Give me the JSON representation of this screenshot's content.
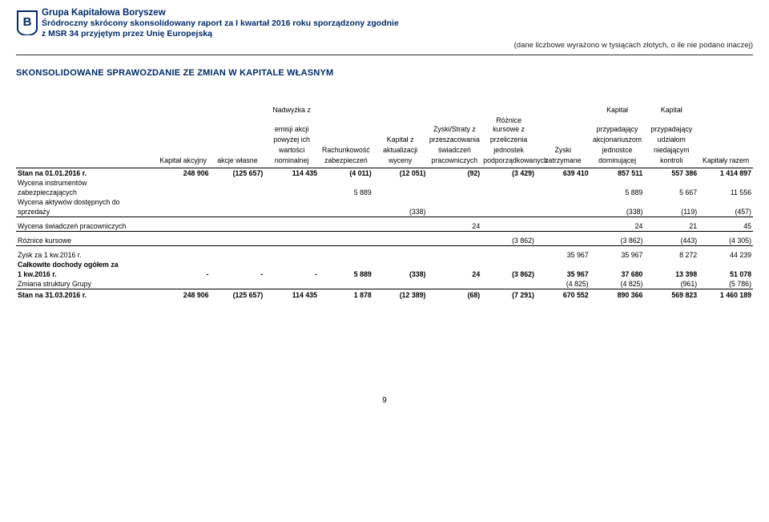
{
  "header": {
    "company": "Grupa Kapitałowa Boryszew",
    "sub1": "Śródroczny skrócony skonsolidowany raport za I kwartał 2016 roku sporządzony zgodnie",
    "sub2": "z MSR 34 przyjętym przez Unię Europejską",
    "note": "(dane liczbowe wyrażono w tysiącach złotych, o ile nie podano inaczej)"
  },
  "section_title": "SKONSOLIDOWANE SPRAWOZDANIE ZE ZMIAN W KAPITALE WŁASNYM",
  "columns": {
    "c1": [
      "",
      "",
      "",
      "Kapitał akcyjny"
    ],
    "c2": [
      "",
      "",
      "",
      "akcje własne"
    ],
    "c3": [
      "Nadwyżka z",
      "emisji akcji",
      "powyżej ich",
      "wartości",
      "nominalnej"
    ],
    "c4": [
      "",
      "",
      "",
      "Rachunkowość",
      "zabezpieczeń"
    ],
    "c5": [
      "",
      "",
      "Kapitał z",
      "aktualizacji",
      "wyceny"
    ],
    "c6": [
      "",
      "Zyski/Straty z",
      "przeszacowania",
      "świadczeń",
      "pracowniczych"
    ],
    "c7": [
      "",
      "Różnice kursowe z",
      "przeliczenia",
      "jednostek",
      "podporządkowanych"
    ],
    "c8": [
      "",
      "",
      "",
      "Zyski",
      "zatrzymane"
    ],
    "c9": [
      "Kapitał",
      "przypadający",
      "akcjonariuszom",
      "jednostce",
      "dominującej"
    ],
    "c10": [
      "Kapitał",
      "przypadający",
      "udziałom",
      "niedającym",
      "kontroli"
    ],
    "c11": [
      "",
      "",
      "",
      "",
      "Kapitały razem"
    ]
  },
  "rows": [
    {
      "label": "Stan na 01.01.2016 r.",
      "class": "data-first",
      "v": [
        "248 906",
        "(125 657)",
        "114 435",
        "(4 011)",
        "(12 051)",
        "(92)",
        "(3 429)",
        "639 410",
        "857 511",
        "557 386",
        "1 414 897"
      ]
    },
    {
      "label": "Wycena instrumentów",
      "class": "",
      "v": [
        "",
        "",
        "",
        "",
        "",
        "",
        "",
        "",
        "",
        "",
        ""
      ]
    },
    {
      "label": "zabezpieczających",
      "class": "",
      "v": [
        "",
        "",
        "",
        "5 889",
        "",
        "",
        "",
        "",
        "5 889",
        "5 667",
        "11 556"
      ]
    },
    {
      "label": "Wycena aktywów dostępnych do",
      "class": "",
      "v": [
        "",
        "",
        "",
        "",
        "",
        "",
        "",
        "",
        "",
        "",
        ""
      ]
    },
    {
      "label": "sprzedaży",
      "class": "",
      "v": [
        "",
        "",
        "",
        "",
        "(338)",
        "",
        "",
        "",
        "(338)",
        "(119)",
        "(457)"
      ]
    },
    {
      "label": "Wycena świadczeń pracowniczych",
      "class": "topline",
      "v": [
        "",
        "",
        "",
        "",
        "",
        "24",
        "",
        "",
        "24",
        "21",
        "45"
      ]
    },
    {
      "label": "Różnice kursowe",
      "class": "topline",
      "v": [
        "",
        "",
        "",
        "",
        "",
        "",
        "(3 862)",
        "",
        "(3 862)",
        "(443)",
        "(4 305)"
      ]
    },
    {
      "label": "Zysk za 1 kw.2016 r.",
      "class": "topline",
      "v": [
        "",
        "",
        "",
        "",
        "",
        "",
        "",
        "35 967",
        "35 967",
        "8 272",
        "44 239"
      ]
    },
    {
      "label": "Całkowite dochody ogółem za",
      "class": "bold",
      "v": [
        "",
        "",
        "",
        "",
        "",
        "",
        "",
        "",
        "",
        "",
        ""
      ]
    },
    {
      "label": "1 kw.2016 r.",
      "class": "bold",
      "v": [
        "-",
        "-",
        "-",
        "5 889",
        "(338)",
        "24",
        "(3 862)",
        "35 967",
        "37 680",
        "13 398",
        "51 078"
      ]
    },
    {
      "label": "Zmiana struktury Grupy",
      "class": "",
      "v": [
        "",
        "",
        "",
        "",
        "",
        "",
        "",
        "(4 825)",
        "(4 825)",
        "(961)",
        "(5 786)"
      ]
    },
    {
      "label": "Stan na 31.03.2016 r.",
      "class": "stan",
      "v": [
        "248 906",
        "(125 657)",
        "114 435",
        "1 878",
        "(12 389)",
        "(68)",
        "(7 291)",
        "670 552",
        "890 366",
        "569 823",
        "1 460 189"
      ]
    }
  ],
  "page_number": "9",
  "colors": {
    "brand": "#012a6a",
    "text": "#000000",
    "rule": "#000000",
    "bg": "#ffffff"
  }
}
